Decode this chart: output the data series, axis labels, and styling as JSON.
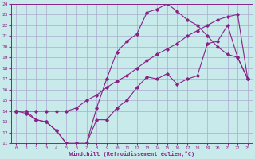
{
  "xlabel": "Windchill (Refroidissement éolien,°C)",
  "bg_color": "#c8eaea",
  "grid_color": "#aaaacc",
  "line_color": "#882288",
  "xlim": [
    -0.5,
    23.5
  ],
  "ylim": [
    11,
    24
  ],
  "xticks": [
    0,
    1,
    2,
    3,
    4,
    5,
    6,
    7,
    8,
    9,
    10,
    11,
    12,
    13,
    14,
    15,
    16,
    17,
    18,
    19,
    20,
    21,
    22,
    23
  ],
  "yticks": [
    11,
    12,
    13,
    14,
    15,
    16,
    17,
    18,
    19,
    20,
    21,
    22,
    23,
    24
  ],
  "line1_x": [
    0,
    1,
    2,
    3,
    4,
    5,
    6,
    7,
    8,
    9,
    10,
    11,
    12,
    13,
    14,
    15,
    16,
    17,
    18,
    19,
    20,
    21,
    22,
    23
  ],
  "line1_y": [
    14,
    14,
    13.2,
    13,
    12.2,
    11,
    11,
    11,
    14.3,
    17,
    19.5,
    20.5,
    21.2,
    23.2,
    23.5,
    24,
    23.3,
    22.5,
    22,
    21,
    20,
    19.3,
    19,
    17
  ],
  "line2_x": [
    0,
    1,
    2,
    3,
    4,
    5,
    6,
    7,
    8,
    9,
    10,
    11,
    12,
    13,
    14,
    15,
    16,
    17,
    18,
    19,
    20,
    21,
    22,
    23
  ],
  "line2_y": [
    14,
    14,
    14,
    14,
    14,
    14,
    14.3,
    15,
    15.5,
    16.2,
    16.8,
    17.3,
    18,
    18.7,
    19.3,
    19.8,
    20.3,
    21,
    21.5,
    22,
    22.5,
    22.8,
    23,
    17
  ],
  "line3_x": [
    0,
    1,
    2,
    3,
    4,
    5,
    6,
    7,
    8,
    9,
    10,
    11,
    12,
    13,
    14,
    15,
    16,
    17,
    18,
    19,
    20,
    21,
    22,
    23
  ],
  "line3_y": [
    14,
    13.8,
    13.2,
    13,
    12.2,
    11,
    11,
    11,
    13.2,
    13.2,
    14.3,
    15,
    16.2,
    17.2,
    17,
    17.5,
    16.5,
    17,
    17.3,
    20.3,
    20.5,
    22,
    19,
    17
  ]
}
